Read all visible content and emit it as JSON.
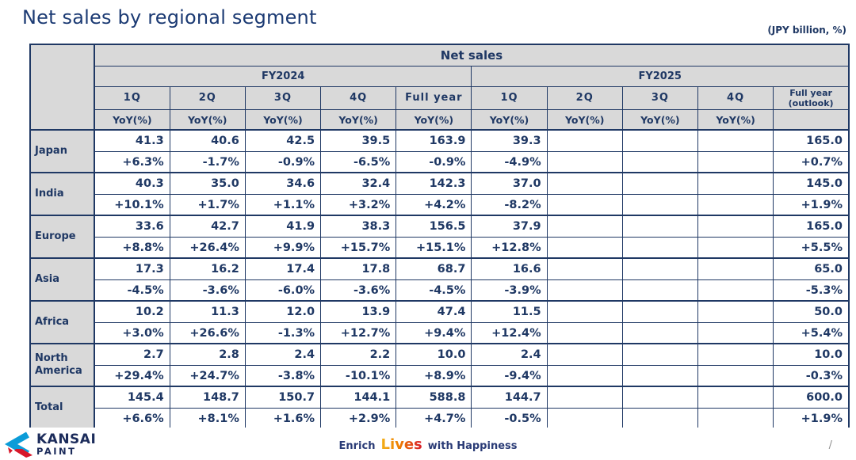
{
  "slide": {
    "title": "Net sales by regional segment",
    "unit_note": "(JPY billion, %)",
    "page_indicator": "/"
  },
  "colors": {
    "navy_text": "#1f3864",
    "table_border": "#1f3864",
    "header_bg": "#d9d9d9",
    "cell_bg": "#ffffff",
    "logo_blue": "#0b9cd8",
    "logo_red": "#d7182a",
    "lives_gradient": [
      "#f3b21a",
      "#ee7d00",
      "#d7182a"
    ]
  },
  "chart_data": {
    "type": "table",
    "title": "Net sales",
    "unit": "JPY billion, %",
    "column_groups": [
      {
        "label": "FY2024",
        "span": 5
      },
      {
        "label": "FY2025",
        "span": 5
      }
    ],
    "columns": [
      "1Q",
      "2Q",
      "3Q",
      "4Q",
      "Full year",
      "1Q",
      "2Q",
      "3Q",
      "4Q",
      "Full year (outlook)"
    ],
    "yoy_header_label": "YoY(%)",
    "yoy_header_flags": [
      true,
      true,
      true,
      true,
      true,
      true,
      true,
      true,
      true,
      false
    ],
    "rows": [
      {
        "region": "Japan",
        "net_sales": [
          41.3,
          40.6,
          42.5,
          39.5,
          163.9,
          39.3,
          null,
          null,
          null,
          165.0
        ],
        "yoy": [
          "+6.3%",
          "-1.7%",
          "-0.9%",
          "-6.5%",
          "-0.9%",
          "-4.9%",
          "",
          "",
          "",
          "+0.7%"
        ]
      },
      {
        "region": "India",
        "net_sales": [
          40.3,
          35.0,
          34.6,
          32.4,
          142.3,
          37.0,
          null,
          null,
          null,
          145.0
        ],
        "yoy": [
          "+10.1%",
          "+1.7%",
          "+1.1%",
          "+3.2%",
          "+4.2%",
          "-8.2%",
          "",
          "",
          "",
          "+1.9%"
        ]
      },
      {
        "region": "Europe",
        "net_sales": [
          33.6,
          42.7,
          41.9,
          38.3,
          156.5,
          37.9,
          null,
          null,
          null,
          165.0
        ],
        "yoy": [
          "+8.8%",
          "+26.4%",
          "+9.9%",
          "+15.7%",
          "+15.1%",
          "+12.8%",
          "",
          "",
          "",
          "+5.5%"
        ]
      },
      {
        "region": "Asia",
        "net_sales": [
          17.3,
          16.2,
          17.4,
          17.8,
          68.7,
          16.6,
          null,
          null,
          null,
          65.0
        ],
        "yoy": [
          "-4.5%",
          "-3.6%",
          "-6.0%",
          "-3.6%",
          "-4.5%",
          "-3.9%",
          "",
          "",
          "",
          "-5.3%"
        ]
      },
      {
        "region": "Africa",
        "net_sales": [
          10.2,
          11.3,
          12.0,
          13.9,
          47.4,
          11.5,
          null,
          null,
          null,
          50.0
        ],
        "yoy": [
          "+3.0%",
          "+26.6%",
          "-1.3%",
          "+12.7%",
          "+9.4%",
          "+12.4%",
          "",
          "",
          "",
          "+5.4%"
        ]
      },
      {
        "region": "North America",
        "net_sales": [
          2.7,
          2.8,
          2.4,
          2.2,
          10.0,
          2.4,
          null,
          null,
          null,
          10.0
        ],
        "yoy": [
          "+29.4%",
          "+24.7%",
          "-3.8%",
          "-10.1%",
          "+8.9%",
          "-9.4%",
          "",
          "",
          "",
          "-0.3%"
        ]
      },
      {
        "region": "Total",
        "net_sales": [
          145.4,
          148.7,
          150.7,
          144.1,
          588.8,
          144.7,
          null,
          null,
          null,
          600.0
        ],
        "yoy": [
          "+6.6%",
          "+8.1%",
          "+1.6%",
          "+2.9%",
          "+4.7%",
          "-0.5%",
          "",
          "",
          "",
          "+1.9%"
        ]
      }
    ]
  },
  "footer": {
    "logo_primary": "KANSAI",
    "logo_secondary": "PAINT",
    "tagline_enrich": "Enrich",
    "tagline_lives": "Lives",
    "tagline_rest": "with Happiness"
  }
}
